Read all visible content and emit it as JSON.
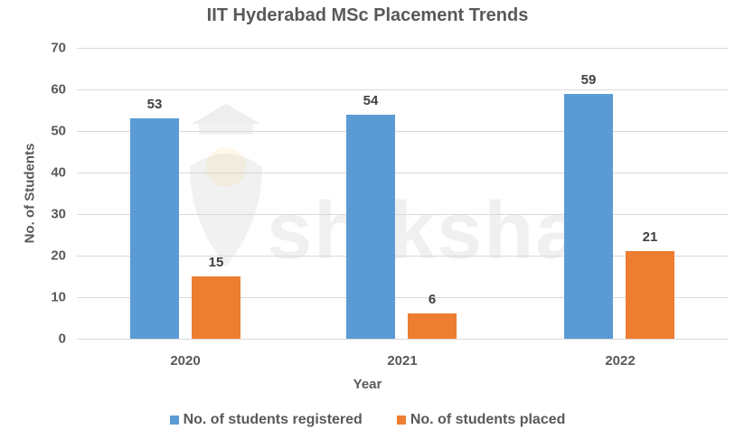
{
  "chart_data": {
    "type": "bar",
    "title": "IIT Hyderabad MSc Placement Trends",
    "xlabel": "Year",
    "ylabel": "No. of Students",
    "categories": [
      "2020",
      "2021",
      "2022"
    ],
    "series": [
      {
        "name": "No. of students registered",
        "color": "#5b9bd5",
        "values": [
          53,
          54,
          59
        ]
      },
      {
        "name": "No. of students placed",
        "color": "#ed7d31",
        "values": [
          15,
          6,
          21
        ]
      }
    ],
    "ylim": [
      0,
      70
    ],
    "yticks": [
      "0",
      "10",
      "20",
      "30",
      "40",
      "50",
      "60",
      "70"
    ],
    "grid": true,
    "legend_position": "bottom",
    "data_labels": true
  },
  "watermark": "shiksha"
}
